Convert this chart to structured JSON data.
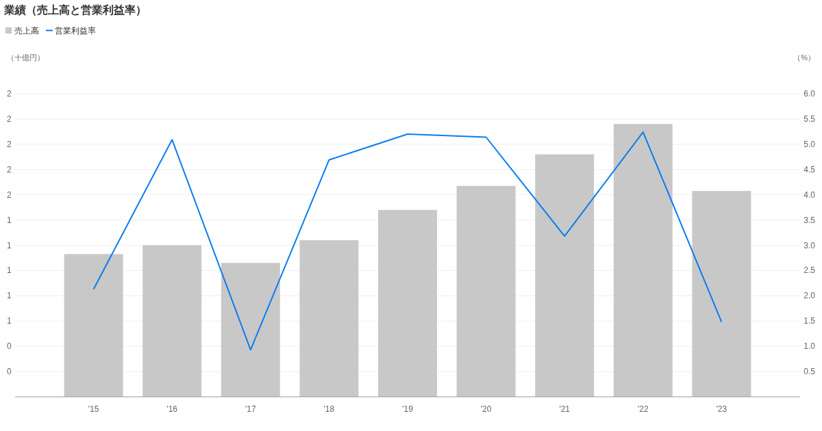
{
  "chart_data": {
    "type": "bar",
    "title": "業績（売上高と営業利益率）",
    "ylabel": "（十億円）",
    "y2label": "（%）",
    "categories": [
      "'15",
      "'16",
      "'17",
      "'18",
      "'19",
      "'20",
      "'21",
      "'22",
      "'23"
    ],
    "series": [
      {
        "name": "売上高",
        "color": "#c8c8c8",
        "values": [
          1.13,
          1.2,
          1.06,
          1.24,
          1.48,
          1.67,
          1.92,
          2.16,
          1.63
        ]
      },
      {
        "name": "営業利益率",
        "type": "line",
        "axis": "y2",
        "color": "#0a7cf0",
        "values": [
          2.13,
          5.09,
          0.93,
          4.69,
          5.2,
          5.14,
          3.18,
          5.24,
          1.48
        ]
      }
    ],
    "ylim": [
      0,
      2.4
    ],
    "yticks": [
      {
        "value": 0.2,
        "label": "0"
      },
      {
        "value": 0.4,
        "label": "0"
      },
      {
        "value": 0.6,
        "label": "1"
      },
      {
        "value": 0.8,
        "label": "1"
      },
      {
        "value": 1.0,
        "label": "1"
      },
      {
        "value": 1.2,
        "label": "1"
      },
      {
        "value": 1.4,
        "label": "1"
      },
      {
        "value": 1.6,
        "label": "2"
      },
      {
        "value": 1.8,
        "label": "2"
      },
      {
        "value": 2.0,
        "label": "2"
      },
      {
        "value": 2.2,
        "label": "2"
      },
      {
        "value": 2.4,
        "label": "2"
      }
    ],
    "y2lim": [
      0,
      6
    ],
    "y2ticks": [
      {
        "value": 0.5,
        "label": "0.5"
      },
      {
        "value": 1,
        "label": "1.0"
      },
      {
        "value": 1.5,
        "label": "1.5"
      },
      {
        "value": 2,
        "label": "2.0"
      },
      {
        "value": 2.5,
        "label": "2.5"
      },
      {
        "value": 3,
        "label": "3.0"
      },
      {
        "value": 3.5,
        "label": "3.5"
      },
      {
        "value": 4,
        "label": "4.0"
      },
      {
        "value": 4.5,
        "label": "4.5"
      },
      {
        "value": 5,
        "label": "5.0"
      },
      {
        "value": 5.5,
        "label": "5.5"
      },
      {
        "value": 6,
        "label": "6.0"
      }
    ],
    "grid": "y",
    "legend": "top left"
  }
}
